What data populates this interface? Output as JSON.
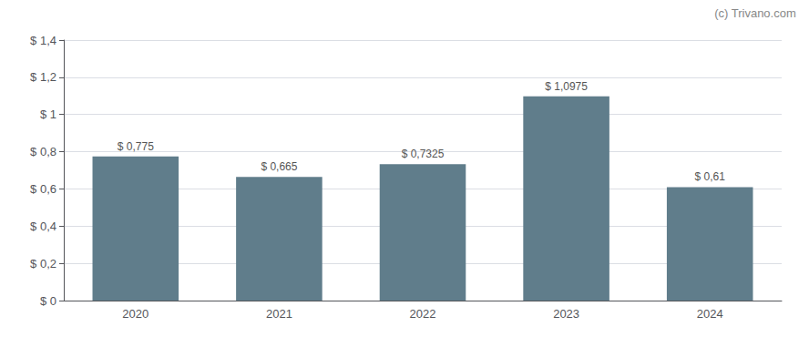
{
  "chart_data": {
    "type": "bar",
    "categories": [
      "2020",
      "2021",
      "2022",
      "2023",
      "2024"
    ],
    "values": [
      0.775,
      0.665,
      0.7325,
      1.0975,
      0.61
    ],
    "value_labels": [
      "$ 0,775",
      "$ 0,665",
      "$ 0,7325",
      "$ 1,0975",
      "$ 0,61"
    ],
    "data_labels": true,
    "color": "#607d8b",
    "ylim": [
      0,
      1.4
    ],
    "yticks": [
      {
        "value": 0,
        "label": "$ 0"
      },
      {
        "value": 0.2,
        "label": "$ 0,2"
      },
      {
        "value": 0.4,
        "label": "$ 0,4"
      },
      {
        "value": 0.6,
        "label": "$ 0,6"
      },
      {
        "value": 0.8,
        "label": "$ 0,8"
      },
      {
        "value": 1.0,
        "label": "$ 1"
      },
      {
        "value": 1.2,
        "label": "$ 1,2"
      },
      {
        "value": 1.4,
        "label": "$ 1,4"
      }
    ],
    "grid": true,
    "annotations": [
      "(c) Trivano.com"
    ]
  }
}
